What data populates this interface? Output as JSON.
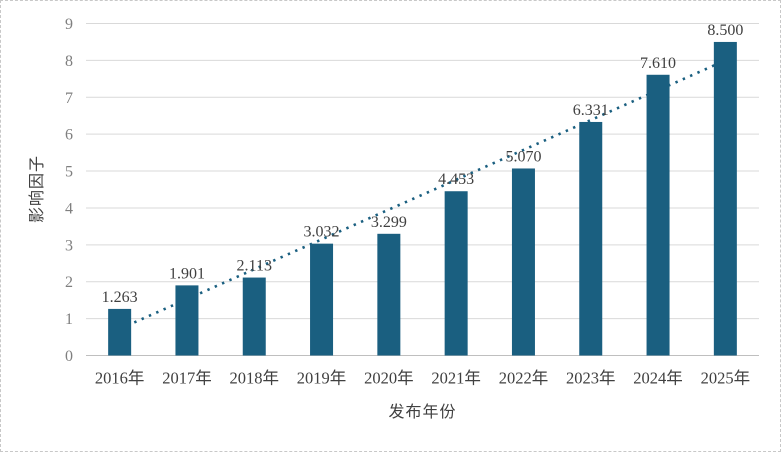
{
  "page": {
    "background_color": "#ffffff",
    "border_color": "#c8c8c8"
  },
  "chart_data": {
    "type": "bar",
    "title": "",
    "categories": [
      "2016年",
      "2017年",
      "2018年",
      "2019年",
      "2020年",
      "2021年",
      "2022年",
      "2023年",
      "2024年",
      "2025年"
    ],
    "values": [
      1.263,
      1.901,
      2.113,
      3.032,
      3.299,
      4.453,
      5.07,
      6.331,
      7.61,
      8.5
    ],
    "value_labels": [
      "1.263",
      "1.901",
      "2.113",
      "3.032",
      "3.299",
      "4.453",
      "5.070",
      "6.331",
      "7.610",
      "8.500"
    ],
    "xlabel": "发布年份",
    "ylabel": "影响因子",
    "ylim": [
      0,
      9
    ],
    "ytick_step": 1,
    "yticks": [
      "0",
      "1",
      "2",
      "3",
      "4",
      "5",
      "6",
      "7",
      "8",
      "9"
    ],
    "grid": true,
    "legend": "none",
    "bar_color": "#1a5f80",
    "gridline_color": "#d9d9d9",
    "baseline_color": "#bfbfbf",
    "tick_label_color": "#7f7f7f",
    "data_label_color": "#404040",
    "trendline": {
      "style": "dotted",
      "color": "#1a5f80",
      "start_value": 0.72,
      "end_value": 8.0
    }
  }
}
